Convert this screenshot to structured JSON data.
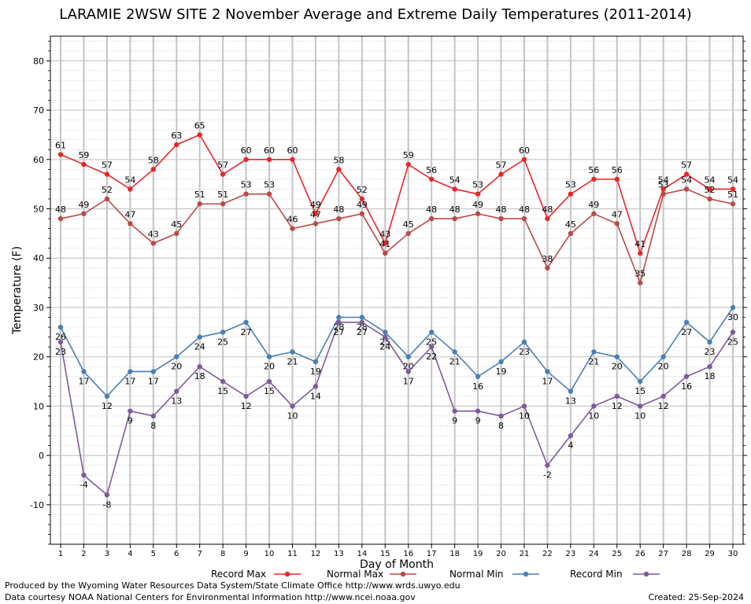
{
  "chart_data": {
    "type": "line",
    "title": "LARAMIE 2WSW SITE 2 November Average and Extreme Daily Temperatures (2011-2014)",
    "xlabel": "Day of Month",
    "ylabel": "Temperature (F)",
    "xlim": [
      1,
      30
    ],
    "ylim": [
      -18,
      85
    ],
    "yticks": [
      -10,
      0,
      10,
      20,
      30,
      40,
      50,
      60,
      70,
      80
    ],
    "x": [
      1,
      2,
      3,
      4,
      5,
      6,
      7,
      8,
      9,
      10,
      11,
      12,
      13,
      14,
      15,
      16,
      17,
      18,
      19,
      20,
      21,
      22,
      23,
      24,
      25,
      26,
      27,
      28,
      29,
      30
    ],
    "grid": true,
    "legend_position": "bottom",
    "series": [
      {
        "name": "Record Max",
        "color": "#e8262a",
        "values": [
          61,
          59,
          57,
          54,
          58,
          63,
          65,
          57,
          60,
          60,
          60,
          49,
          58,
          52,
          43,
          59,
          56,
          54,
          53,
          57,
          60,
          48,
          53,
          56,
          56,
          41,
          54,
          57,
          54,
          54
        ]
      },
      {
        "name": "Normal Max",
        "color": "#b94a48",
        "values": [
          48,
          49,
          52,
          47,
          43,
          45,
          51,
          51,
          53,
          53,
          46,
          47,
          48,
          49,
          41,
          45,
          48,
          48,
          49,
          48,
          48,
          38,
          45,
          49,
          47,
          35,
          53,
          54,
          52,
          51
        ]
      },
      {
        "name": "Normal Min",
        "color": "#4a7fb5",
        "values": [
          26,
          17,
          12,
          17,
          17,
          20,
          24,
          25,
          27,
          20,
          21,
          19,
          28,
          28,
          25,
          20,
          25,
          21,
          16,
          19,
          23,
          17,
          13,
          21,
          20,
          15,
          20,
          27,
          23,
          30
        ]
      },
      {
        "name": "Record Min",
        "color": "#7d5a9e",
        "values": [
          23,
          -4,
          -8,
          9,
          8,
          13,
          18,
          15,
          12,
          15,
          10,
          14,
          27,
          27,
          24,
          17,
          22,
          9,
          9,
          8,
          10,
          -2,
          4,
          10,
          12,
          10,
          12,
          16,
          18,
          25
        ]
      }
    ]
  },
  "footer": {
    "line1": "Produced by the Wyoming Water Resources Data System/State Climate Office http://www.wrds.uwyo.edu",
    "line2": "Data courtesy NOAA National Centers for Environmental Information http://www.ncei.noaa.gov",
    "created": "Created:  25-Sep-2024"
  }
}
